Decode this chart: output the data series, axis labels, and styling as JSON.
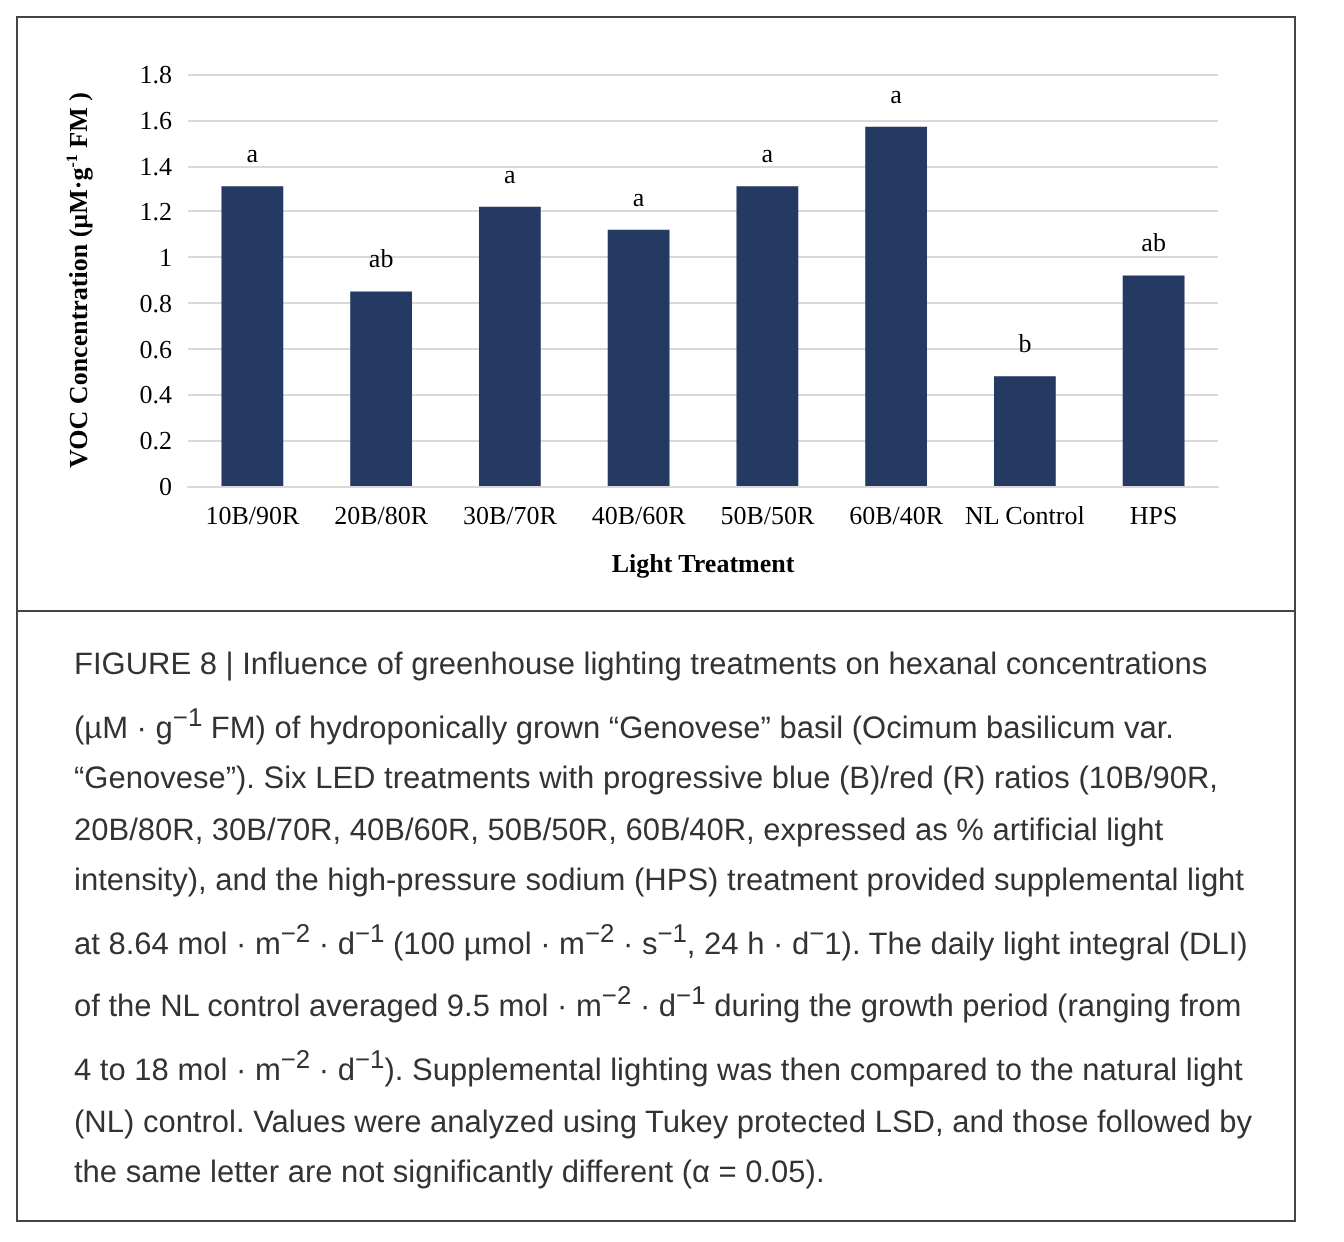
{
  "chart_data": {
    "type": "bar",
    "categories": [
      "10B/90R",
      "20B/80R",
      "30B/70R",
      "40B/60R",
      "50B/50R",
      "60B/40R",
      "NL Control",
      "HPS"
    ],
    "values": [
      1.31,
      0.85,
      1.22,
      1.12,
      1.31,
      1.57,
      0.48,
      0.92
    ],
    "value_labels": [
      "a",
      "ab",
      "a",
      "a",
      "a",
      "a",
      "b",
      "ab"
    ],
    "color": "#253a62",
    "xlabel": "Light Treatment",
    "ylabel": "VOC Concentration (µM·g$^{-1}$ FM )",
    "ylim": [
      0,
      1.8
    ],
    "yticks": [
      0,
      0.2,
      0.4,
      0.6,
      0.8,
      1,
      1.2,
      1.4,
      1.6,
      1.8
    ],
    "grid": "y",
    "annotations": [
      "FIGURE 8 | Influence of greenhouse lighting treatments on hexanal concentrations (µM · g$^{−1}$ FM) of hydroponically grown “Genovese” basil (Ocimum basilicum var. “Genovese”). Six LED treatments with progressive blue (B)/red (R) ratios (10B/90R, 20B/80R, 30B/70R, 40B/60R, 50B/50R, 60B/40R, expressed as % artificial light intensity), and the high-pressure sodium (HPS) treatment provided supplemental light at 8.64 mol · m$^{−2}$ · d$^{−1}$ (100 µmol · m$^{−2}$ · s$^{−1}$, 24 h · d$^{−}$1). The daily light integral (DLI) of the NL control averaged 9.5 mol · m$^{−2}$ · d$^{−1}$ during the growth period (ranging from 4 to 18 mol · m$^{−2}$ · d$^{−1}$). Supplemental lighting was then compared to the natural light (NL) control. Values were analyzed using Tukey protected LSD, and those followed by the same letter are not significantly different (α = 0.05)."
    ]
  }
}
